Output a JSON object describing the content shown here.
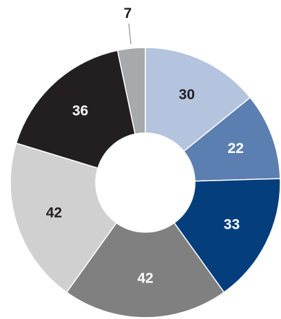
{
  "chart_data": {
    "type": "donut",
    "values": [
      30,
      22,
      33,
      42,
      42,
      36,
      7
    ],
    "colors": [
      "#b4c3de",
      "#5b7fb0",
      "#043e7d",
      "#808080",
      "#d0d0d0",
      "#231f20",
      "#a7a9ac"
    ],
    "start_angle": 0,
    "direction": "clockwise"
  }
}
